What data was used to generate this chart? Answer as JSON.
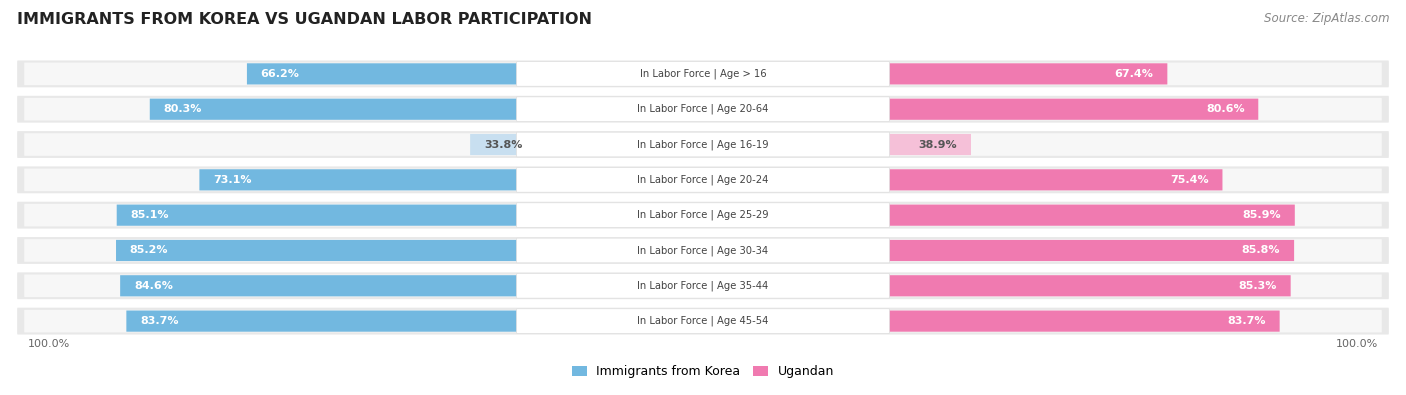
{
  "title": "IMMIGRANTS FROM KOREA VS UGANDAN LABOR PARTICIPATION",
  "source": "Source: ZipAtlas.com",
  "categories": [
    "In Labor Force | Age > 16",
    "In Labor Force | Age 20-64",
    "In Labor Force | Age 16-19",
    "In Labor Force | Age 20-24",
    "In Labor Force | Age 25-29",
    "In Labor Force | Age 30-34",
    "In Labor Force | Age 35-44",
    "In Labor Force | Age 45-54"
  ],
  "korea_values": [
    66.2,
    80.3,
    33.8,
    73.1,
    85.1,
    85.2,
    84.6,
    83.7
  ],
  "ugandan_values": [
    67.4,
    80.6,
    38.9,
    75.4,
    85.9,
    85.8,
    85.3,
    83.7
  ],
  "korea_color": "#72b8e0",
  "ugandan_color": "#f07ab0",
  "korea_light_color": "#c8dff0",
  "ugandan_light_color": "#f5c0d8",
  "row_bg_color": "#e8e8e8",
  "row_inner_color": "#f7f7f7",
  "label_text_color": "#444444",
  "white_text": "#ffffff",
  "dark_text": "#555555",
  "background_color": "#ffffff",
  "legend_korea": "Immigrants from Korea",
  "legend_ugandan": "Ugandan",
  "bottom_label": "100.0%"
}
